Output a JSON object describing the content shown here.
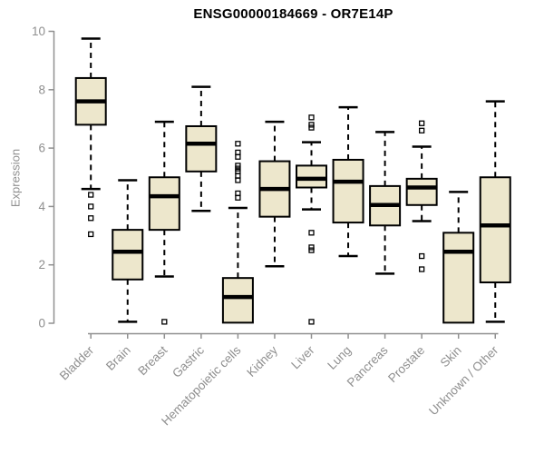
{
  "chart_data": {
    "type": "boxplot",
    "title": "ENSG00000184669 - OR7E14P",
    "ylabel": "Expression",
    "xlabel": "",
    "ylim": [
      0,
      10
    ],
    "yticks": [
      0,
      2,
      4,
      6,
      8,
      10
    ],
    "grid": false,
    "legend": "none",
    "box_fill": "#EDE7CC",
    "box_stroke": "#000000",
    "median_color": "#000000",
    "whisker_style": "dashed",
    "outlier_marker": "open-square",
    "axis_color": "#909090",
    "label_color": "#8f8f8f",
    "title_color": "#000000",
    "categories": [
      "Bladder",
      "Brain",
      "Breast",
      "Gastric",
      "Hematopoietic cells",
      "Kidney",
      "Liver",
      "Lung",
      "Pancreas",
      "Prostate",
      "Skin",
      "Unknown / Other"
    ],
    "series": [
      {
        "category": "Bladder",
        "whisker_low": 4.6,
        "q1": 6.8,
        "median": 7.6,
        "q3": 8.4,
        "whisker_high": 9.75,
        "outliers": [
          4.4,
          4.0,
          3.6,
          3.05
        ]
      },
      {
        "category": "Brain",
        "whisker_low": 0.05,
        "q1": 1.5,
        "median": 2.45,
        "q3": 3.2,
        "whisker_high": 4.9,
        "outliers": []
      },
      {
        "category": "Breast",
        "whisker_low": 1.6,
        "q1": 3.2,
        "median": 4.35,
        "q3": 5.0,
        "whisker_high": 6.9,
        "outliers": [
          0.05
        ]
      },
      {
        "category": "Gastric",
        "whisker_low": 3.85,
        "q1": 5.2,
        "median": 6.15,
        "q3": 6.75,
        "whisker_high": 8.1,
        "outliers": []
      },
      {
        "category": "Hematopoietic cells",
        "whisker_low": 0.02,
        "q1": 0.02,
        "median": 0.9,
        "q3": 1.55,
        "whisker_high": 3.95,
        "outliers": [
          6.15,
          5.85,
          5.7,
          5.4,
          5.3,
          5.2,
          5.05,
          4.9,
          4.45,
          4.3
        ]
      },
      {
        "category": "Kidney",
        "whisker_low": 1.95,
        "q1": 3.65,
        "median": 4.6,
        "q3": 5.55,
        "whisker_high": 6.9,
        "outliers": []
      },
      {
        "category": "Liver",
        "whisker_low": 3.9,
        "q1": 4.65,
        "median": 4.95,
        "q3": 5.4,
        "whisker_high": 6.2,
        "outliers": [
          7.05,
          6.8,
          6.7,
          3.1,
          2.6,
          2.5,
          0.05
        ]
      },
      {
        "category": "Lung",
        "whisker_low": 2.3,
        "q1": 3.45,
        "median": 4.85,
        "q3": 5.6,
        "whisker_high": 7.4,
        "outliers": []
      },
      {
        "category": "Pancreas",
        "whisker_low": 1.7,
        "q1": 3.35,
        "median": 4.05,
        "q3": 4.7,
        "whisker_high": 6.55,
        "outliers": []
      },
      {
        "category": "Prostate",
        "whisker_low": 3.5,
        "q1": 4.05,
        "median": 4.65,
        "q3": 4.95,
        "whisker_high": 6.05,
        "outliers": [
          6.85,
          6.6,
          2.3,
          1.85
        ]
      },
      {
        "category": "Skin",
        "whisker_low": 0.02,
        "q1": 0.02,
        "median": 2.45,
        "q3": 3.1,
        "whisker_high": 4.5,
        "outliers": []
      },
      {
        "category": "Unknown / Other",
        "whisker_low": 0.05,
        "q1": 1.4,
        "median": 3.35,
        "q3": 5.0,
        "whisker_high": 7.6,
        "outliers": []
      }
    ]
  }
}
